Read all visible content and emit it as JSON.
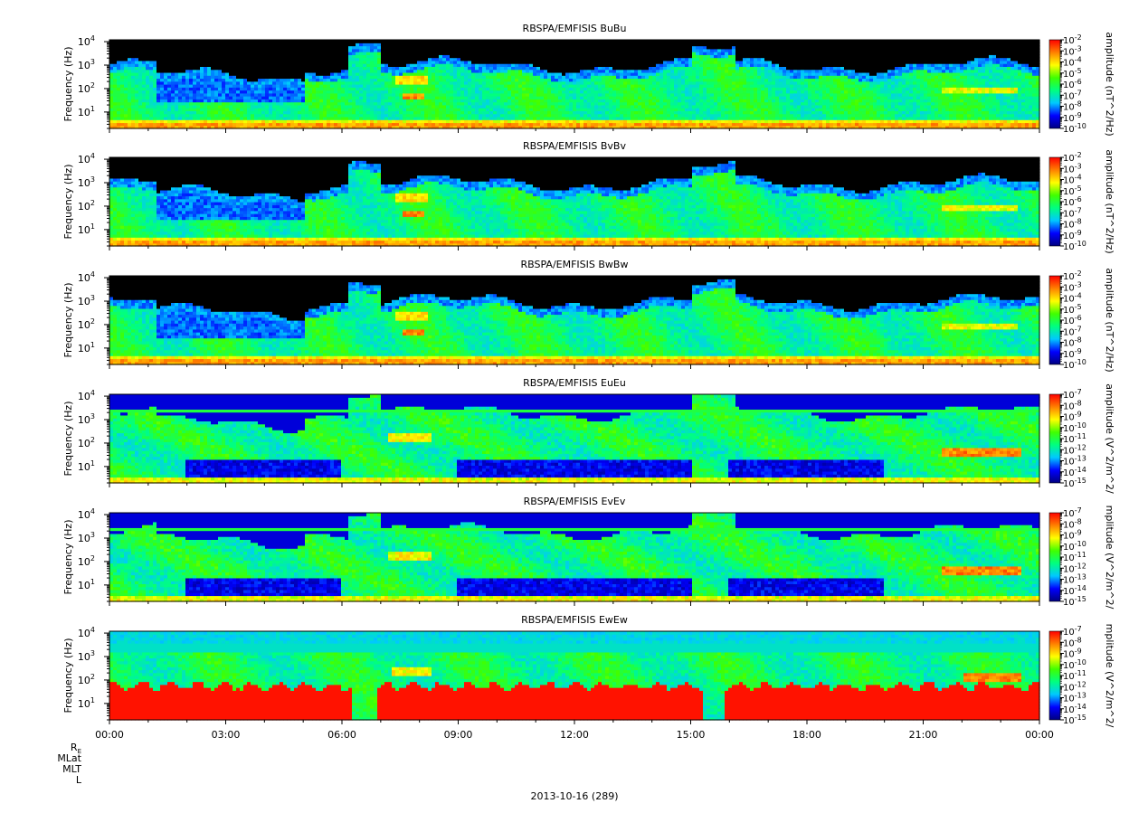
{
  "chart_data": {
    "type": "heatmap",
    "x_axis": {
      "tick_labels": [
        "00:00",
        "03:00",
        "06:00",
        "09:00",
        "12:00",
        "15:00",
        "18:00",
        "21:00",
        "00:00"
      ],
      "range_hours": [
        0,
        24
      ],
      "ephemeris_labels": [
        "RE",
        "MLat",
        "MLT",
        "L"
      ],
      "date_label": "2013-10-16 (289)"
    },
    "y_axis": {
      "label": "Frequency (Hz)",
      "scale": "log",
      "range_hz": [
        2,
        12000
      ],
      "tick_values": [
        10,
        100,
        1000,
        10000
      ]
    },
    "colormap": [
      "#000080",
      "#0000ff",
      "#00c8ff",
      "#00ff80",
      "#40ff00",
      "#ffff00",
      "#ff8000",
      "#ff0000"
    ],
    "panels": [
      {
        "title": "RBSPA/EMFISIS  BuBu",
        "colorbar_label": "amplitude (nT^2/Hz)",
        "colorbar_exponents": [
          -2,
          -3,
          -4,
          -5,
          -6,
          -7,
          -8,
          -9,
          -10
        ],
        "kind": "B"
      },
      {
        "title": "RBSPA/EMFISIS  BvBv",
        "colorbar_label": "amplitude (nT^2/Hz)",
        "colorbar_exponents": [
          -2,
          -3,
          -4,
          -5,
          -6,
          -7,
          -8,
          -9,
          -10
        ],
        "kind": "B"
      },
      {
        "title": "RBSPA/EMFISIS  BwBw",
        "colorbar_label": "amplitude (nT^2/Hz)",
        "colorbar_exponents": [
          -2,
          -3,
          -4,
          -5,
          -6,
          -7,
          -8,
          -9,
          -10
        ],
        "kind": "B"
      },
      {
        "title": "RBSPA/EMFISIS  EuEu",
        "colorbar_label": "amplitude (V^2/m^2/",
        "colorbar_exponents": [
          -7,
          -8,
          -9,
          -10,
          -11,
          -12,
          -13,
          -14,
          -15
        ],
        "kind": "E"
      },
      {
        "title": "RBSPA/EMFISIS  EvEv",
        "colorbar_label": "mplitude (V^2/m^2/",
        "colorbar_exponents": [
          -7,
          -8,
          -9,
          -10,
          -11,
          -12,
          -13,
          -14,
          -15
        ],
        "kind": "E"
      },
      {
        "title": "RBSPA/EMFISIS  EwEw",
        "colorbar_label": "mplitude (V^2/m^2/",
        "colorbar_exponents": [
          -7,
          -8,
          -9,
          -10,
          -11,
          -12,
          -13,
          -14,
          -15
        ],
        "kind": "Ew"
      }
    ]
  }
}
